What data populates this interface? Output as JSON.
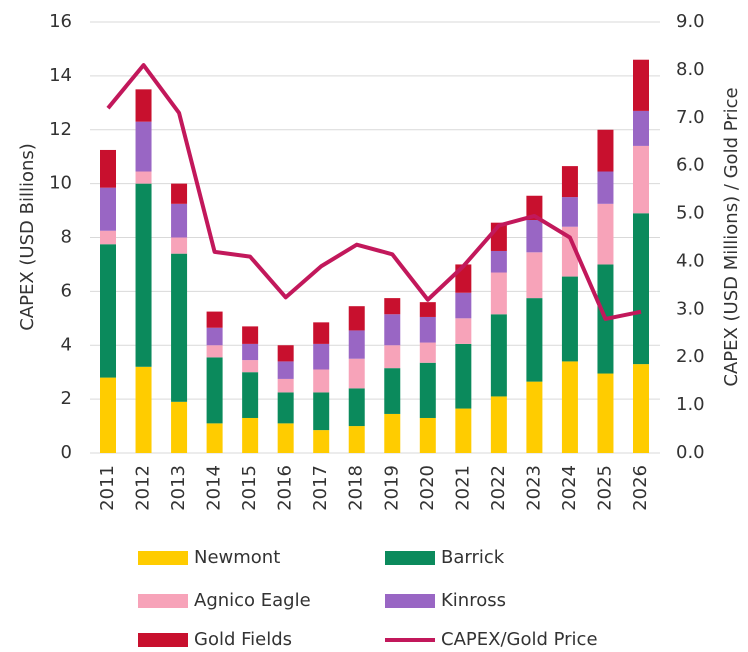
{
  "chart_data": {
    "type": "bar",
    "stacked": true,
    "ylabel": "CAPEX (USD Billions)",
    "y2label": "CAPEX (USD Millions) / Gold Price",
    "categories": [
      "2011",
      "2012",
      "2013",
      "2014",
      "2015",
      "2016",
      "2017",
      "2018",
      "2019",
      "2020",
      "2021",
      "2022",
      "2023",
      "2024",
      "2025",
      "2026"
    ],
    "ylim": [
      0,
      16
    ],
    "yticks": [
      0,
      2,
      4,
      6,
      8,
      10,
      12,
      14,
      16
    ],
    "y2lim": [
      0,
      9
    ],
    "y2ticks": [
      {
        "value": 0,
        "label": "0.0"
      },
      {
        "value": 1,
        "label": "1.0"
      },
      {
        "value": 2,
        "label": "2.0"
      },
      {
        "value": 3,
        "label": "3.0"
      },
      {
        "value": 4,
        "label": "4.0"
      },
      {
        "value": 5,
        "label": "5.0"
      },
      {
        "value": 6,
        "label": "6.0"
      },
      {
        "value": 7,
        "label": "7.0"
      },
      {
        "value": 8,
        "label": "8.0"
      },
      {
        "value": 9,
        "label": "9.0"
      }
    ],
    "grid": true,
    "series": [
      {
        "name": "Newmont",
        "color": "#ffcc00",
        "values": [
          2.8,
          3.2,
          1.9,
          1.1,
          1.3,
          1.1,
          0.85,
          1.0,
          1.45,
          1.3,
          1.65,
          2.1,
          2.65,
          3.4,
          2.95,
          3.3
        ]
      },
      {
        "name": "Barrick",
        "color": "#0b8a5c",
        "values": [
          4.95,
          6.8,
          5.5,
          2.45,
          1.7,
          1.15,
          1.4,
          1.4,
          1.7,
          2.05,
          2.4,
          3.05,
          3.1,
          3.15,
          4.05,
          5.6
        ]
      },
      {
        "name": "Agnico Eagle",
        "color": "#f7a3b9",
        "values": [
          0.5,
          0.45,
          0.6,
          0.45,
          0.45,
          0.5,
          0.85,
          1.1,
          0.85,
          0.75,
          0.95,
          1.55,
          1.7,
          1.85,
          2.25,
          2.5
        ]
      },
      {
        "name": "Kinross",
        "color": "#9966c4",
        "values": [
          1.6,
          1.85,
          1.25,
          0.65,
          0.6,
          0.65,
          0.95,
          1.05,
          1.15,
          0.95,
          0.95,
          0.8,
          1.2,
          1.1,
          1.2,
          1.3
        ]
      },
      {
        "name": "Gold Fields",
        "color": "#c8102e",
        "values": [
          1.4,
          1.2,
          0.75,
          0.6,
          0.65,
          0.6,
          0.8,
          0.9,
          0.6,
          0.55,
          1.05,
          1.05,
          0.9,
          1.15,
          1.55,
          1.9
        ]
      },
      {
        "name": "CAPEX/Gold Price",
        "color": "#c2185b",
        "type": "line",
        "axis": "y2",
        "values": [
          7.2,
          8.1,
          7.1,
          4.2,
          4.1,
          3.25,
          3.9,
          4.35,
          4.15,
          3.2,
          3.9,
          4.75,
          4.95,
          4.5,
          2.8,
          2.95
        ]
      }
    ]
  }
}
